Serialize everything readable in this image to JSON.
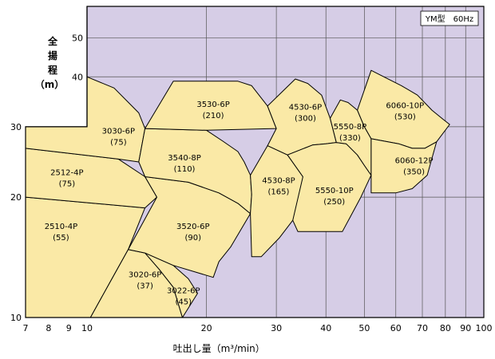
{
  "chart_data": {
    "type": "area",
    "title": "",
    "xlabel": "吐出し量（m³/min）",
    "ylabel": [
      "全",
      "揚",
      "程",
      "（m）"
    ],
    "legend": "YM型　60Hz",
    "x_scale": "log",
    "y_scale": "log",
    "xlim": [
      7,
      100
    ],
    "ylim": [
      10,
      60
    ],
    "x_ticks": [
      7,
      8,
      9,
      10,
      20,
      30,
      40,
      50,
      60,
      70,
      80,
      90,
      100
    ],
    "y_ticks": [
      10,
      20,
      30,
      40,
      50
    ],
    "regions": [
      {
        "name": "2510-4P",
        "capacity": "(55)",
        "polygon": [
          [
            7,
            20
          ],
          [
            14,
            18.8
          ],
          [
            12.7,
            14.8
          ],
          [
            11.5,
            12.4
          ],
          [
            10.2,
            10
          ],
          [
            7,
            10
          ]
        ]
      },
      {
        "name": "2512-4P",
        "capacity": "(75)",
        "polygon": [
          [
            7,
            26.5
          ],
          [
            12,
            24.9
          ],
          [
            14,
            22.5
          ],
          [
            15,
            20
          ],
          [
            14,
            18.8
          ],
          [
            7,
            20
          ]
        ]
      },
      {
        "name": "3030-6P",
        "capacity": "(75)",
        "polygon": [
          [
            7,
            30
          ],
          [
            10,
            30
          ],
          [
            10,
            40
          ],
          [
            11.7,
            37.5
          ],
          [
            13.5,
            32.5
          ],
          [
            14,
            29.7
          ],
          [
            13.5,
            24.5
          ],
          [
            12,
            24.9
          ],
          [
            7,
            26.5
          ]
        ]
      },
      {
        "name": "3020-6P",
        "capacity": "(37)",
        "polygon": [
          [
            12.7,
            14.8
          ],
          [
            14,
            14.5
          ],
          [
            15.2,
            13.2
          ],
          [
            16.5,
            11.9
          ],
          [
            17.4,
            10
          ],
          [
            10.2,
            10
          ],
          [
            11.5,
            12.4
          ]
        ]
      },
      {
        "name": "3022-6P",
        "capacity": "(45)",
        "polygon": [
          [
            14,
            14.5
          ],
          [
            16.5,
            13.5
          ],
          [
            18,
            12.5
          ],
          [
            19,
            11.5
          ],
          [
            17.4,
            10
          ],
          [
            16.5,
            11.9
          ],
          [
            15.2,
            13.2
          ]
        ]
      },
      {
        "name": "3520-6P",
        "capacity": "(90)",
        "polygon": [
          [
            14,
            22.5
          ],
          [
            18,
            21.8
          ],
          [
            21.5,
            20.5
          ],
          [
            24,
            19.3
          ],
          [
            25.8,
            18.2
          ],
          [
            23,
            15
          ],
          [
            21.5,
            13.8
          ],
          [
            20.8,
            12.6
          ],
          [
            16.5,
            13.5
          ],
          [
            14,
            14.5
          ],
          [
            12.7,
            14.8
          ],
          [
            15,
            20
          ]
        ]
      },
      {
        "name": "3540-8P",
        "capacity": "(110)",
        "polygon": [
          [
            14,
            29.7
          ],
          [
            20,
            29.4
          ],
          [
            22,
            27.6
          ],
          [
            24,
            26
          ],
          [
            24.9,
            24.5
          ],
          [
            25.8,
            22.7
          ],
          [
            26,
            20.3
          ],
          [
            25.8,
            18.2
          ],
          [
            24,
            19.3
          ],
          [
            21.5,
            20.5
          ],
          [
            18,
            21.8
          ],
          [
            14,
            22.5
          ],
          [
            13.5,
            24.5
          ]
        ]
      },
      {
        "name": "3530-6P",
        "capacity": "(210)",
        "polygon": [
          [
            14,
            29.7
          ],
          [
            16.5,
            39
          ],
          [
            24,
            39
          ],
          [
            26,
            38
          ],
          [
            28.5,
            33.8
          ],
          [
            30,
            29.7
          ],
          [
            20,
            29.4
          ]
        ]
      },
      {
        "name": "4530-8P",
        "capacity": "(165)",
        "polygon": [
          [
            25.8,
            18.2
          ],
          [
            26,
            20.3
          ],
          [
            25.8,
            22.7
          ],
          [
            28.5,
            26.9
          ],
          [
            32,
            25.5
          ],
          [
            35,
            22.5
          ],
          [
            36.5,
            20.3
          ],
          [
            33,
            17.5
          ],
          [
            30.5,
            15.8
          ],
          [
            27.5,
            14.2
          ],
          [
            26,
            14.2
          ]
        ]
      },
      {
        "name": "4530-6P",
        "capacity": "(300)",
        "polygon": [
          [
            28.5,
            33.8
          ],
          [
            33.5,
            39.5
          ],
          [
            36,
            38.5
          ],
          [
            39,
            36
          ],
          [
            41,
            31.5
          ],
          [
            42.5,
            27.4
          ],
          [
            40,
            27.2
          ],
          [
            37,
            27
          ],
          [
            32,
            25.5
          ],
          [
            28.5,
            26.9
          ],
          [
            30,
            29.7
          ]
        ]
      },
      {
        "name": "5550-10P",
        "capacity": "(250)",
        "polygon": [
          [
            32,
            25.5
          ],
          [
            37,
            27
          ],
          [
            40,
            27.2
          ],
          [
            42.5,
            27.4
          ],
          [
            45,
            27.2
          ],
          [
            48,
            25.5
          ],
          [
            50,
            24
          ],
          [
            52,
            22.7
          ],
          [
            49,
            20
          ],
          [
            46,
            17.8
          ],
          [
            44,
            16.4
          ],
          [
            34,
            16.4
          ],
          [
            33,
            17.5
          ],
          [
            35,
            22.5
          ]
        ]
      },
      {
        "name": "5550-8P",
        "capacity": "(330)",
        "polygon": [
          [
            41,
            31.5
          ],
          [
            43.5,
            35
          ],
          [
            45.5,
            34.5
          ],
          [
            48,
            33
          ],
          [
            50,
            30
          ],
          [
            52,
            28
          ],
          [
            52,
            22.7
          ],
          [
            50,
            24
          ],
          [
            48,
            25.5
          ],
          [
            45,
            27.2
          ],
          [
            42.5,
            27.4
          ]
        ]
      },
      {
        "name": "6060-10P",
        "capacity": "(530)",
        "polygon": [
          [
            48,
            33
          ],
          [
            52,
            41.5
          ],
          [
            56,
            40
          ],
          [
            62,
            38
          ],
          [
            68,
            36
          ],
          [
            74,
            33
          ],
          [
            79,
            31.3
          ],
          [
            82,
            30.4
          ],
          [
            76,
            27.5
          ],
          [
            71,
            26.5
          ],
          [
            66,
            26.5
          ],
          [
            61,
            27.2
          ],
          [
            52,
            28
          ],
          [
            50,
            30
          ]
        ]
      },
      {
        "name": "6060-12P",
        "capacity": "(350)",
        "polygon": [
          [
            52,
            28
          ],
          [
            61,
            27.2
          ],
          [
            66,
            26.5
          ],
          [
            71,
            26.5
          ],
          [
            76,
            27.5
          ],
          [
            72,
            22.7
          ],
          [
            66,
            21
          ],
          [
            60,
            20.5
          ],
          [
            52,
            20.5
          ],
          [
            52,
            22.7
          ]
        ]
      }
    ],
    "label_positions": [
      {
        "name": "2510-4P",
        "x": 8.6,
        "y": 16.5
      },
      {
        "name": "2512-4P",
        "x": 8.9,
        "y": 22.5
      },
      {
        "name": "3030-6P",
        "x": 12.0,
        "y": 28.6
      },
      {
        "name": "3020-6P",
        "x": 14.0,
        "y": 12.5
      },
      {
        "name": "3022-6P",
        "x": 17.5,
        "y": 11.4
      },
      {
        "name": "3520-6P",
        "x": 18.5,
        "y": 16.5
      },
      {
        "name": "3540-8P",
        "x": 17.6,
        "y": 24.5
      },
      {
        "name": "3530-6P",
        "x": 20.8,
        "y": 33.3
      },
      {
        "name": "4530-8P",
        "x": 30.4,
        "y": 21.5
      },
      {
        "name": "4530-6P",
        "x": 35.5,
        "y": 32.8
      },
      {
        "name": "5550-10P",
        "x": 42.0,
        "y": 20.3
      },
      {
        "name": "5550-8P",
        "x": 46.0,
        "y": 29.3
      },
      {
        "name": "6060-10P",
        "x": 63.3,
        "y": 33.1
      },
      {
        "name": "6060-12P",
        "x": 66.7,
        "y": 24.1
      }
    ],
    "colors": {
      "background": "#d6cde6",
      "region_fill": "#fae9a6",
      "grid": "#555555",
      "stroke": "#000000"
    }
  }
}
